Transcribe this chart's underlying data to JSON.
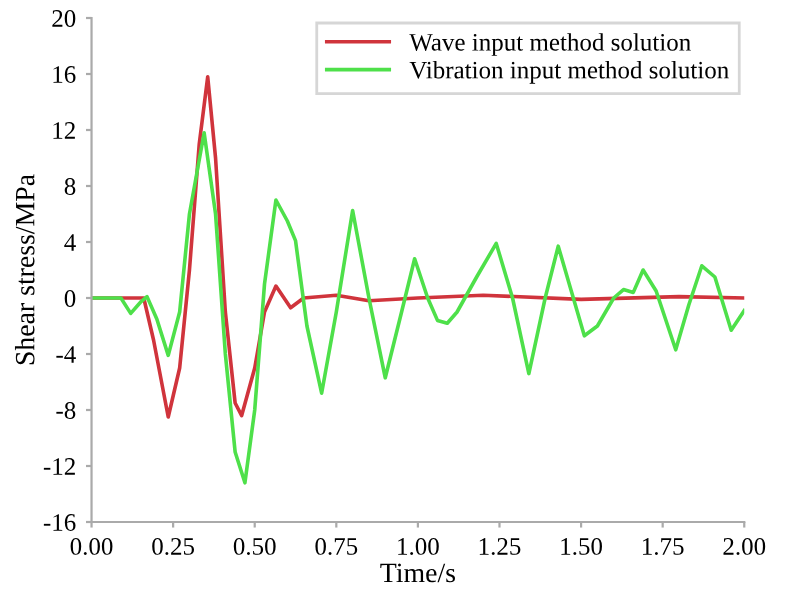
{
  "chart_data": {
    "type": "line",
    "xlabel": "Time/s",
    "ylabel": "Shear stress/MPa",
    "xlim": [
      0,
      2
    ],
    "xticks": [
      {
        "value": 0,
        "label": "0.00"
      },
      {
        "value": 0.25,
        "label": "0.25"
      },
      {
        "value": 0.5,
        "label": "0.50"
      },
      {
        "value": 0.75,
        "label": "0.75"
      },
      {
        "value": 1,
        "label": "1.00"
      },
      {
        "value": 1.25,
        "label": "1.25"
      },
      {
        "value": 1.5,
        "label": "1.50"
      },
      {
        "value": 1.75,
        "label": "1.75"
      },
      {
        "value": 2,
        "label": "2.00"
      }
    ],
    "ylim": [
      -16,
      20
    ],
    "yticks": [
      -16,
      -12,
      -8,
      -4,
      0,
      4,
      8,
      12,
      16,
      20
    ],
    "grid": false,
    "legend": "top right",
    "marker": "none",
    "line_style": "solid",
    "series": [
      {
        "name": "Wave input method solution",
        "color": "#d0343c",
        "x": [
          0,
          0.16,
          0.19,
          0.235,
          0.27,
          0.3,
          0.33,
          0.356,
          0.38,
          0.41,
          0.44,
          0.46,
          0.5,
          0.53,
          0.565,
          0.61,
          0.65,
          0.75,
          0.85,
          1.0,
          1.2,
          1.5,
          1.8,
          2.0
        ],
        "values": [
          0,
          0,
          -3,
          -8.5,
          -5,
          2,
          11,
          15.8,
          10,
          -1,
          -7.5,
          -8.4,
          -5,
          -1,
          0.85,
          -0.7,
          0,
          0.2,
          -0.2,
          0,
          0.2,
          -0.1,
          0.1,
          0
        ]
      },
      {
        "name": "Vibration input method solution",
        "color": "#4ee04a",
        "x": [
          0,
          0.09,
          0.12,
          0.15,
          0.17,
          0.2,
          0.235,
          0.27,
          0.3,
          0.345,
          0.38,
          0.41,
          0.44,
          0.47,
          0.5,
          0.53,
          0.565,
          0.6,
          0.625,
          0.66,
          0.705,
          0.75,
          0.8,
          0.85,
          0.9,
          0.95,
          0.99,
          1.03,
          1.06,
          1.09,
          1.12,
          1.18,
          1.24,
          1.29,
          1.34,
          1.39,
          1.43,
          1.47,
          1.51,
          1.55,
          1.6,
          1.63,
          1.66,
          1.69,
          1.73,
          1.79,
          1.83,
          1.87,
          1.91,
          1.96,
          2.0
        ],
        "values": [
          0,
          0,
          -1.1,
          -0.3,
          0.1,
          -1.5,
          -4.1,
          -1,
          6,
          11.8,
          6,
          -4,
          -11,
          -13.2,
          -8,
          1,
          7.0,
          5.5,
          4.1,
          -2,
          -6.8,
          -1,
          6.25,
          0,
          -5.7,
          -1,
          2.8,
          0,
          -1.6,
          -1.8,
          -1,
          1.5,
          3.9,
          0,
          -5.4,
          0,
          3.7,
          0.5,
          -2.7,
          -2,
          0,
          0.6,
          0.4,
          2.0,
          0.5,
          -3.7,
          -0.5,
          2.3,
          1.5,
          -2.3,
          -0.9
        ]
      }
    ]
  }
}
